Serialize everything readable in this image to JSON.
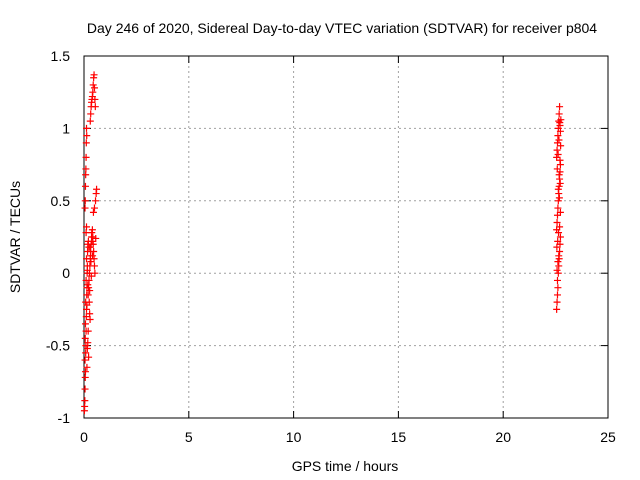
{
  "chart_data": {
    "type": "scatter",
    "title": "Day 246 of 2020, Sidereal Day-to-day VTEC variation (SDTVAR) for receiver p804",
    "xlabel": "GPS time / hours",
    "ylabel": "SDTVAR / TECUs",
    "xlim": [
      0,
      25
    ],
    "ylim": [
      -1,
      1.5
    ],
    "xticks": [
      0,
      5,
      10,
      15,
      20,
      25
    ],
    "xtick_labels": [
      "0",
      "5",
      "10",
      "15",
      "20",
      "25"
    ],
    "yticks": [
      -1,
      -0.5,
      0,
      0.5,
      1,
      1.5
    ],
    "ytick_labels": [
      "-1",
      "-0.5",
      "0",
      "0.5",
      "1",
      "1.5"
    ],
    "grid": true,
    "marker": "+",
    "series": [
      {
        "name": "SDTVAR",
        "color": "#ff0000",
        "points": [
          [
            0.02,
            -0.95
          ],
          [
            0.03,
            -0.92
          ],
          [
            0.04,
            -0.88
          ],
          [
            0.05,
            -0.8
          ],
          [
            0.06,
            -0.72
          ],
          [
            0.07,
            -0.68
          ],
          [
            0.05,
            -0.6
          ],
          [
            0.08,
            -0.55
          ],
          [
            0.09,
            -0.5
          ],
          [
            0.06,
            -0.45
          ],
          [
            0.1,
            -0.4
          ],
          [
            0.07,
            -0.35
          ],
          [
            0.11,
            -0.3
          ],
          [
            0.12,
            -0.25
          ],
          [
            0.08,
            -0.2
          ],
          [
            0.13,
            -0.15
          ],
          [
            0.14,
            -0.1
          ],
          [
            0.1,
            -0.05
          ],
          [
            0.15,
            0.0
          ],
          [
            0.16,
            0.05
          ],
          [
            0.12,
            0.1
          ],
          [
            0.17,
            0.15
          ],
          [
            0.18,
            0.2
          ],
          [
            0.05,
            0.45
          ],
          [
            0.06,
            0.5
          ],
          [
            0.07,
            0.6
          ],
          [
            0.08,
            0.68
          ],
          [
            0.09,
            0.72
          ],
          [
            0.1,
            0.8
          ],
          [
            0.11,
            0.9
          ],
          [
            0.12,
            1.0
          ],
          [
            0.13,
            0.95
          ],
          [
            0.2,
            -0.15
          ],
          [
            0.22,
            -0.1
          ],
          [
            0.24,
            -0.05
          ],
          [
            0.26,
            0.0
          ],
          [
            0.28,
            0.05
          ],
          [
            0.3,
            0.1
          ],
          [
            0.32,
            0.15
          ],
          [
            0.34,
            0.2
          ],
          [
            0.36,
            0.25
          ],
          [
            0.38,
            0.22
          ],
          [
            0.25,
            -0.2
          ],
          [
            0.27,
            -0.28
          ],
          [
            0.29,
            -0.32
          ],
          [
            0.2,
            -0.4
          ],
          [
            0.18,
            -0.48
          ],
          [
            0.16,
            -0.52
          ],
          [
            0.22,
            -0.58
          ],
          [
            0.14,
            -0.65
          ],
          [
            0.3,
            1.05
          ],
          [
            0.32,
            1.1
          ],
          [
            0.34,
            1.15
          ],
          [
            0.36,
            1.18
          ],
          [
            0.38,
            1.2
          ],
          [
            0.4,
            1.22
          ],
          [
            0.42,
            1.25
          ],
          [
            0.44,
            1.3
          ],
          [
            0.46,
            1.35
          ],
          [
            0.48,
            1.37
          ],
          [
            0.5,
            1.28
          ],
          [
            0.52,
            1.2
          ],
          [
            0.54,
            1.15
          ],
          [
            0.4,
            0.3
          ],
          [
            0.42,
            0.25
          ],
          [
            0.44,
            0.2
          ],
          [
            0.46,
            0.15
          ],
          [
            0.48,
            0.1
          ],
          [
            0.5,
            0.05
          ],
          [
            0.52,
            0.0
          ],
          [
            0.45,
            0.42
          ],
          [
            0.5,
            0.45
          ],
          [
            0.55,
            0.5
          ],
          [
            0.58,
            0.55
          ],
          [
            0.6,
            0.58
          ],
          [
            0.35,
            -0.02
          ],
          [
            0.33,
            0.08
          ],
          [
            0.31,
            0.12
          ],
          [
            0.29,
            0.18
          ],
          [
            0.27,
            -0.12
          ],
          [
            0.1,
            0.28
          ],
          [
            0.12,
            0.32
          ],
          [
            0.14,
            -0.22
          ],
          [
            0.16,
            0.02
          ],
          [
            0.18,
            -0.08
          ],
          [
            0.21,
            0.22
          ],
          [
            0.23,
            0.18
          ],
          [
            0.37,
            0.28
          ],
          [
            0.41,
            0.12
          ],
          [
            0.56,
            0.24
          ],
          [
            22.55,
            -0.25
          ],
          [
            22.57,
            -0.2
          ],
          [
            22.59,
            -0.15
          ],
          [
            22.61,
            -0.1
          ],
          [
            22.63,
            0.0
          ],
          [
            22.65,
            0.05
          ],
          [
            22.67,
            0.1
          ],
          [
            22.69,
            0.15
          ],
          [
            22.71,
            0.2
          ],
          [
            22.73,
            0.25
          ],
          [
            22.55,
            0.3
          ],
          [
            22.57,
            0.35
          ],
          [
            22.59,
            0.4
          ],
          [
            22.61,
            0.45
          ],
          [
            22.63,
            0.5
          ],
          [
            22.65,
            0.55
          ],
          [
            22.67,
            0.6
          ],
          [
            22.69,
            0.65
          ],
          [
            22.71,
            0.7
          ],
          [
            22.73,
            0.75
          ],
          [
            22.55,
            0.8
          ],
          [
            22.57,
            0.85
          ],
          [
            22.59,
            0.9
          ],
          [
            22.61,
            0.95
          ],
          [
            22.63,
            1.0
          ],
          [
            22.65,
            1.05
          ],
          [
            22.67,
            1.1
          ],
          [
            22.69,
            1.15
          ],
          [
            22.71,
            1.02
          ],
          [
            22.73,
            0.98
          ],
          [
            22.56,
            0.18
          ],
          [
            22.6,
            0.22
          ],
          [
            22.64,
            0.28
          ],
          [
            22.68,
            0.52
          ],
          [
            22.72,
            0.62
          ],
          [
            22.58,
            0.72
          ],
          [
            22.62,
            0.82
          ],
          [
            22.66,
            0.92
          ],
          [
            22.7,
            1.04
          ],
          [
            22.74,
            0.88
          ],
          [
            22.57,
            0.02
          ],
          [
            22.61,
            0.08
          ],
          [
            22.65,
            0.12
          ],
          [
            22.69,
            0.32
          ],
          [
            22.73,
            0.42
          ],
          [
            22.59,
            -0.05
          ],
          [
            22.63,
            0.58
          ],
          [
            22.67,
            0.68
          ],
          [
            22.71,
            0.78
          ],
          [
            22.75,
            1.06
          ]
        ]
      }
    ]
  }
}
